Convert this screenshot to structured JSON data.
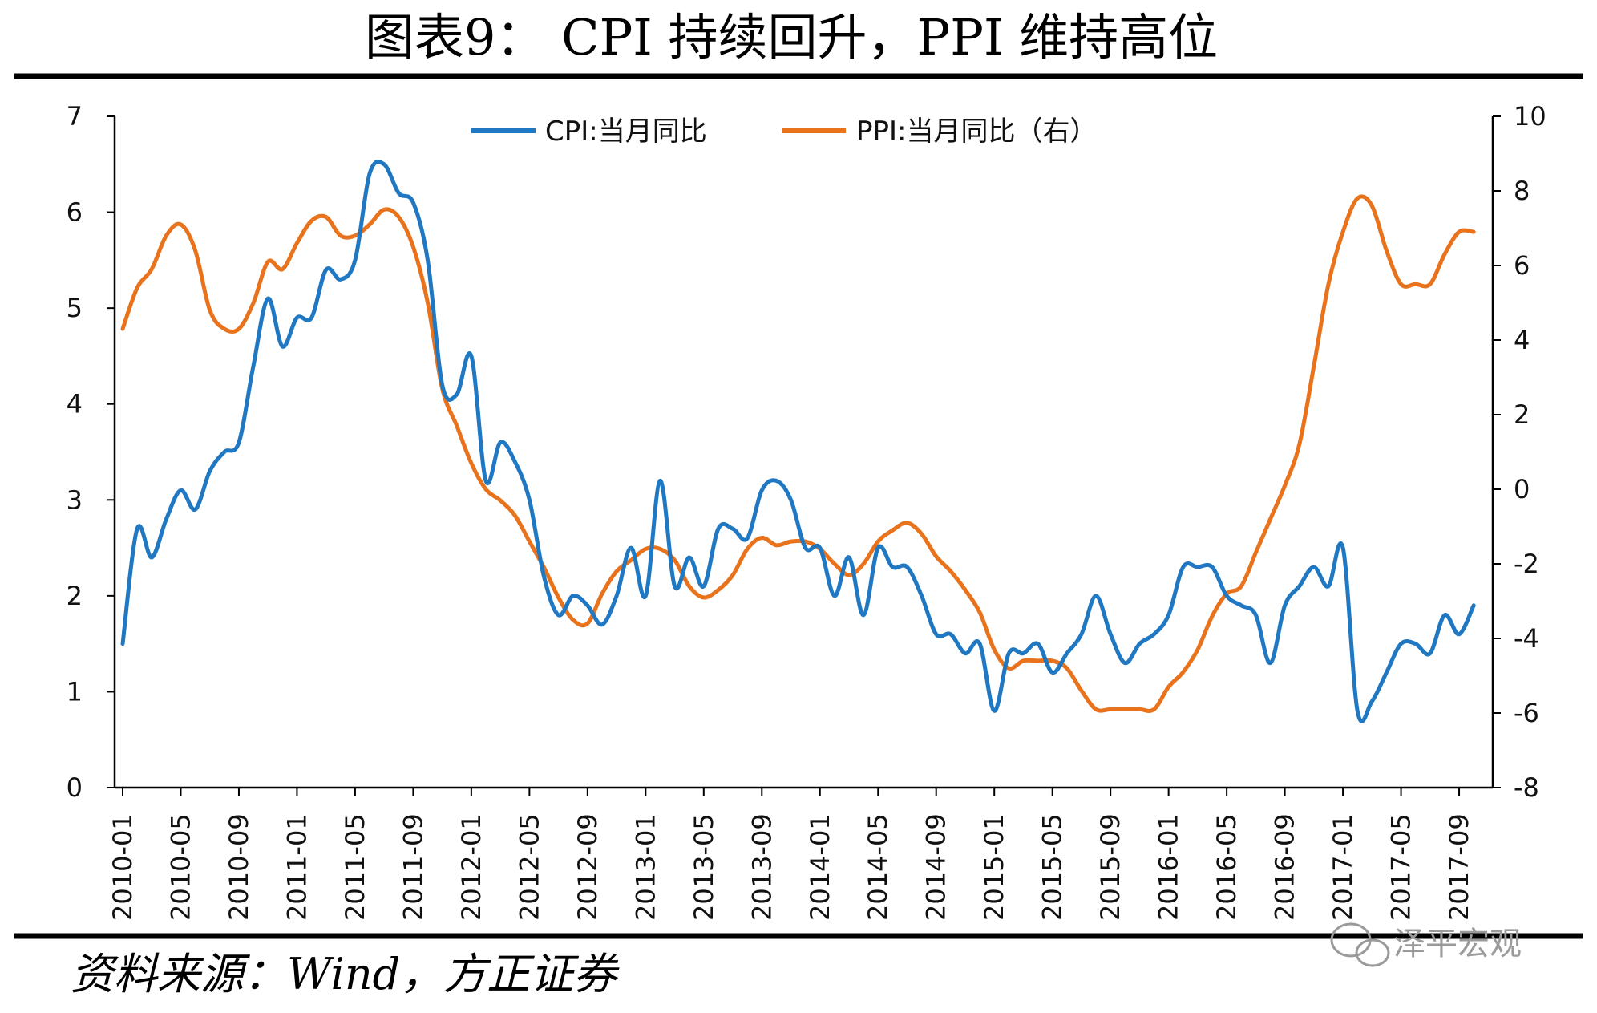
{
  "header": {
    "title": "图表9：  CPI 持续回升，PPI 维持高位"
  },
  "footer": {
    "source": "资料来源：Wind，方正证券",
    "watermark": "泽平宏观"
  },
  "colors": {
    "cpi": "#1F78C1",
    "ppi": "#E8731C",
    "rule": "#000000",
    "watermark": "#9a9a9a"
  },
  "icons": {
    "watermark_icon": "wechat-icon"
  },
  "chart_data": {
    "type": "line",
    "title": "",
    "xlabel": "",
    "ylabel_left": "",
    "ylabel_right": "",
    "legend_placement": "top-center",
    "grid": false,
    "x_tick_labels": [
      "2010-01",
      "2010-05",
      "2010-09",
      "2011-01",
      "2011-05",
      "2011-09",
      "2012-01",
      "2012-05",
      "2012-09",
      "2013-01",
      "2013-05",
      "2013-09",
      "2014-01",
      "2014-05",
      "2014-09",
      "2015-01",
      "2015-05",
      "2015-09",
      "2016-01",
      "2016-05",
      "2016-09",
      "2017-01",
      "2017-05",
      "2017-09"
    ],
    "y_left": {
      "min": 0,
      "max": 7,
      "ticks": [
        "0",
        "1",
        "2",
        "3",
        "4",
        "5",
        "6",
        "7"
      ]
    },
    "y_right": {
      "min": -8,
      "max": 10,
      "ticks": [
        "-8",
        "-6",
        "-4",
        "-2",
        "0",
        "2",
        "4",
        "6",
        "8",
        "10"
      ]
    },
    "start": "2010-01",
    "series": [
      {
        "name": "CPI:当月同比",
        "axis": "left",
        "values": [
          1.5,
          2.7,
          2.4,
          2.8,
          3.1,
          2.9,
          3.3,
          3.5,
          3.6,
          4.4,
          5.1,
          4.6,
          4.9,
          4.9,
          5.4,
          5.3,
          5.5,
          6.4,
          6.5,
          6.2,
          6.1,
          5.5,
          4.2,
          4.1,
          4.5,
          3.2,
          3.6,
          3.4,
          3.0,
          2.2,
          1.8,
          2.0,
          1.9,
          1.7,
          2.0,
          2.5,
          2.0,
          3.2,
          2.1,
          2.4,
          2.1,
          2.7,
          2.7,
          2.6,
          3.1,
          3.2,
          3.0,
          2.5,
          2.5,
          2.0,
          2.4,
          1.8,
          2.5,
          2.3,
          2.3,
          2.0,
          1.6,
          1.6,
          1.4,
          1.5,
          0.8,
          1.4,
          1.4,
          1.5,
          1.2,
          1.4,
          1.6,
          2.0,
          1.6,
          1.3,
          1.5,
          1.6,
          1.8,
          2.3,
          2.3,
          2.3,
          2.0,
          1.9,
          1.8,
          1.3,
          1.9,
          2.1,
          2.3,
          2.1,
          2.5,
          0.8,
          0.9,
          1.2,
          1.5,
          1.5,
          1.4,
          1.8,
          1.6,
          1.9
        ],
        "color": "#1F78C1"
      },
      {
        "name": "PPI:当月同比（右）",
        "axis": "right",
        "values": [
          4.3,
          5.4,
          5.9,
          6.8,
          7.1,
          6.4,
          4.8,
          4.3,
          4.3,
          5.0,
          6.1,
          5.9,
          6.6,
          7.2,
          7.3,
          6.8,
          6.8,
          7.1,
          7.5,
          7.3,
          6.5,
          5.0,
          2.7,
          1.7,
          0.7,
          0.0,
          -0.3,
          -0.7,
          -1.4,
          -2.1,
          -2.9,
          -3.5,
          -3.6,
          -2.8,
          -2.2,
          -1.9,
          -1.6,
          -1.6,
          -1.9,
          -2.6,
          -2.9,
          -2.7,
          -2.3,
          -1.6,
          -1.3,
          -1.5,
          -1.4,
          -1.4,
          -1.6,
          -2.0,
          -2.3,
          -2.0,
          -1.4,
          -1.1,
          -0.9,
          -1.2,
          -1.8,
          -2.2,
          -2.7,
          -3.3,
          -4.3,
          -4.8,
          -4.6,
          -4.6,
          -4.6,
          -4.8,
          -5.4,
          -5.9,
          -5.9,
          -5.9,
          -5.9,
          -5.9,
          -5.3,
          -4.9,
          -4.3,
          -3.4,
          -2.8,
          -2.6,
          -1.7,
          -0.8,
          0.1,
          1.2,
          3.3,
          5.5,
          6.9,
          7.8,
          7.6,
          6.4,
          5.5,
          5.5,
          5.5,
          6.3,
          6.9,
          6.9
        ],
        "color": "#E8731C"
      }
    ]
  }
}
